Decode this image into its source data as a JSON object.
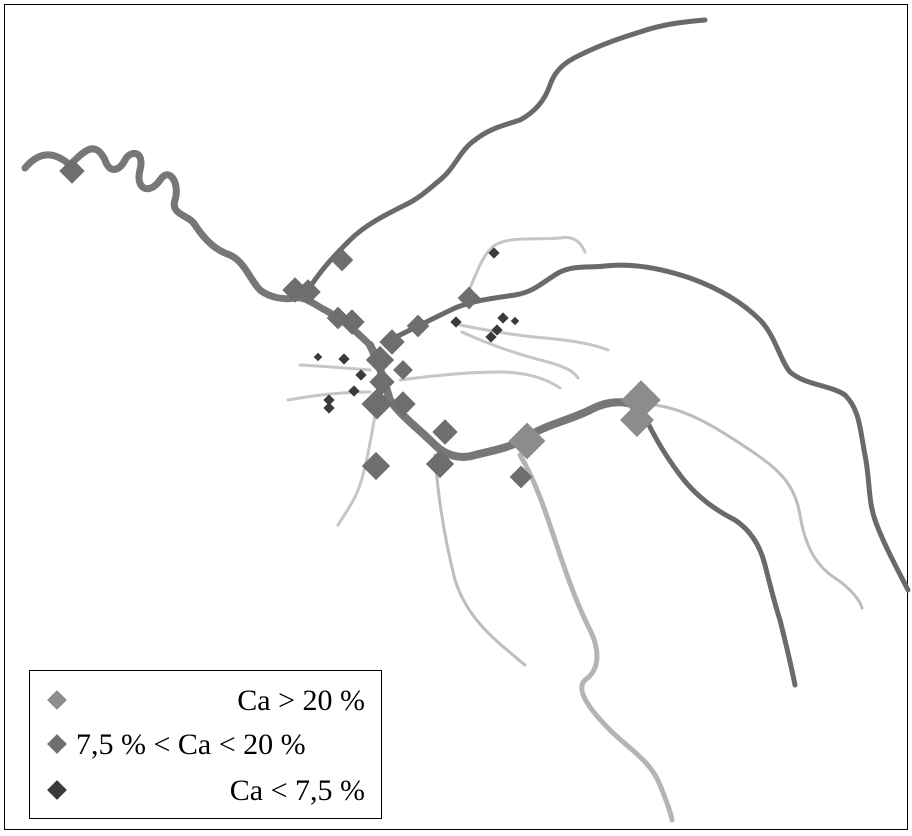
{
  "legend": {
    "items": [
      {
        "label": "Ca > 20 %",
        "color": "#8c8c8c"
      },
      {
        "label": "7,5 % < Ca < 20 %",
        "color": "#6e6e6e"
      },
      {
        "label": "Ca < 7,5 %",
        "color": "#3a3a3a"
      }
    ]
  },
  "colors": {
    "river_dark": "#6a6a6a",
    "river_mid": "#8a8a8a",
    "river_light": "#b8b8b8",
    "river_pale": "#c6c6c6"
  }
}
